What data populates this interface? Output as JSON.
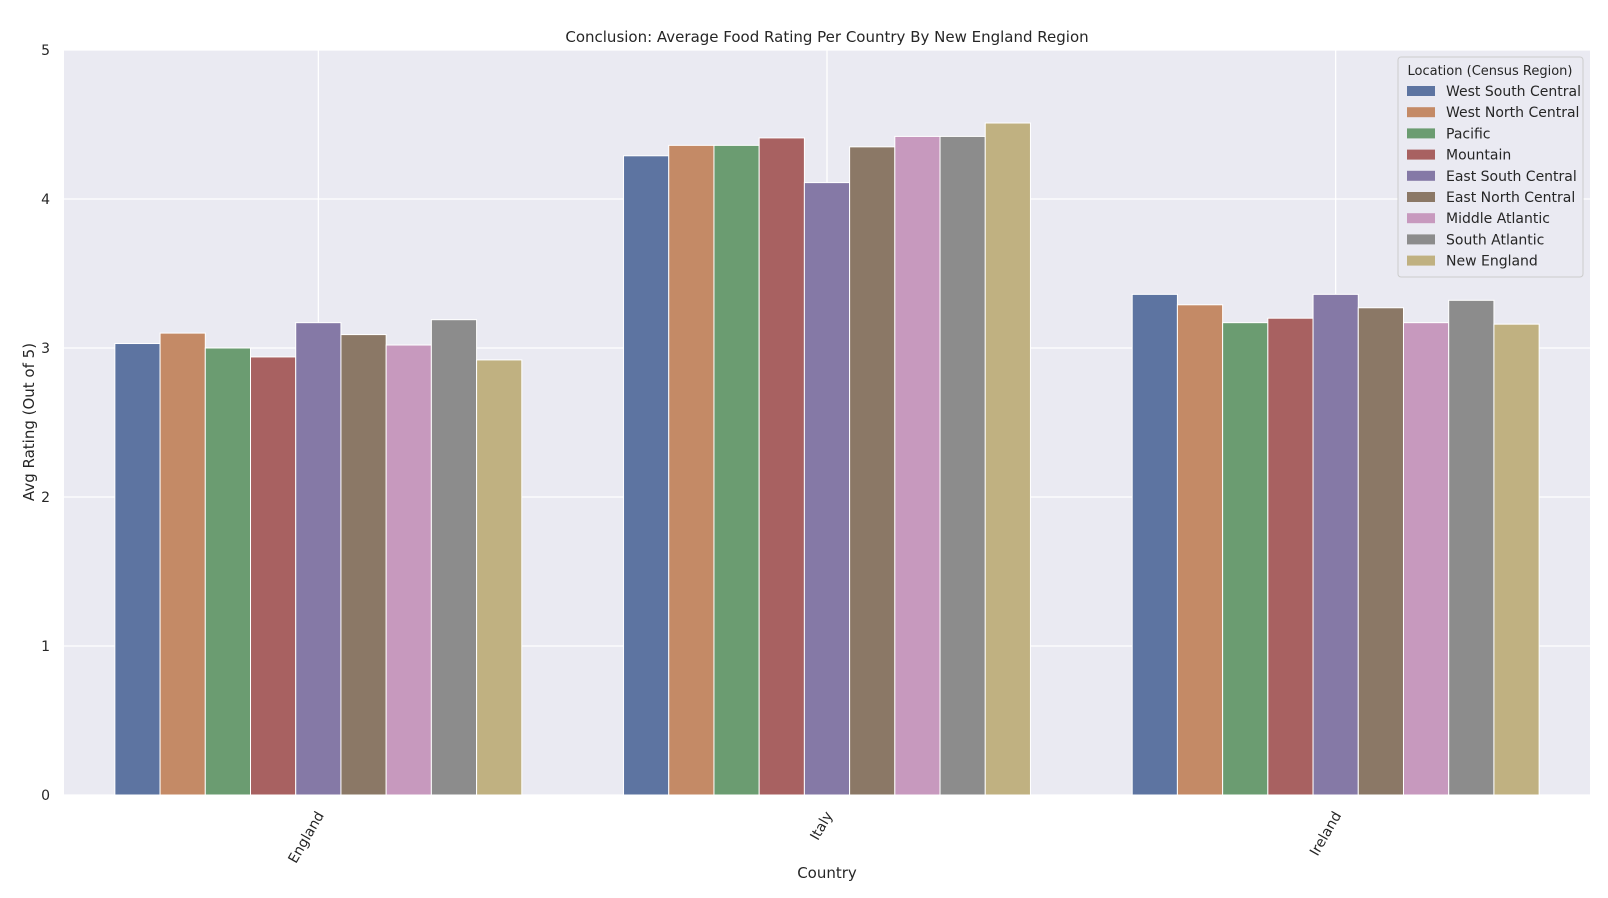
{
  "chart_data": {
    "type": "bar",
    "title": "Conclusion: Average Food Rating Per Country By New England Region",
    "xlabel": "Country",
    "ylabel": "Avg Rating (Out of 5)",
    "ylim": [
      0,
      5
    ],
    "yticks": [
      "0",
      "1",
      "2",
      "3",
      "4",
      "5"
    ],
    "grid": true,
    "legend_title": "Location (Census Region)",
    "legend_position": "top-right",
    "categories": [
      "England",
      "Italy",
      "Ireland"
    ],
    "series": [
      {
        "name": "West South Central",
        "color": "#5d74a1",
        "values": [
          3.03,
          4.29,
          3.36
        ]
      },
      {
        "name": "West North Central",
        "color": "#c48a66",
        "values": [
          3.1,
          4.36,
          3.29
        ]
      },
      {
        "name": "Pacific",
        "color": "#6b9c71",
        "values": [
          3.0,
          4.36,
          3.17
        ]
      },
      {
        "name": "Mountain",
        "color": "#a86161",
        "values": [
          2.94,
          4.41,
          3.2
        ]
      },
      {
        "name": "East South Central",
        "color": "#8579a6",
        "values": [
          3.17,
          4.11,
          3.36
        ]
      },
      {
        "name": "East North Central",
        "color": "#8b7866",
        "values": [
          3.09,
          4.35,
          3.27
        ]
      },
      {
        "name": "Middle Atlantic",
        "color": "#c799be",
        "values": [
          3.02,
          4.42,
          3.17
        ]
      },
      {
        "name": "South Atlantic",
        "color": "#8c8c8c",
        "values": [
          3.19,
          4.42,
          3.32
        ]
      },
      {
        "name": "New England",
        "color": "#c0b181",
        "values": [
          2.92,
          4.51,
          3.16
        ]
      }
    ]
  }
}
